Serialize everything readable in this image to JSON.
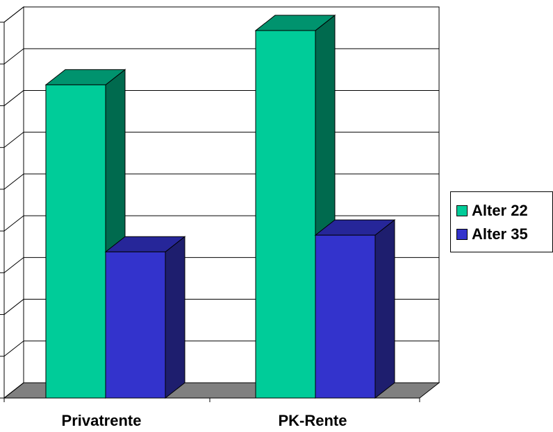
{
  "chart_data": {
    "type": "bar",
    "title": "",
    "xlabel": "",
    "ylabel": "",
    "categories": [
      "Privatrente",
      "PK-Rente"
    ],
    "series": [
      {
        "name": "Alter 22",
        "values": [
          7.5,
          8.8
        ],
        "color": "#00cc99",
        "side_color": "#006a4e",
        "top_color": "#00936e"
      },
      {
        "name": "Alter 35",
        "values": [
          3.5,
          3.9
        ],
        "color": "#3333cc",
        "side_color": "#1e1e6e",
        "top_color": "#262699"
      }
    ],
    "ylim": [
      0,
      9
    ],
    "grid": true,
    "legend": "right",
    "three_d": true,
    "colors": {
      "floor": "#808080",
      "grid": "#000000",
      "background": "#ffffff"
    }
  }
}
